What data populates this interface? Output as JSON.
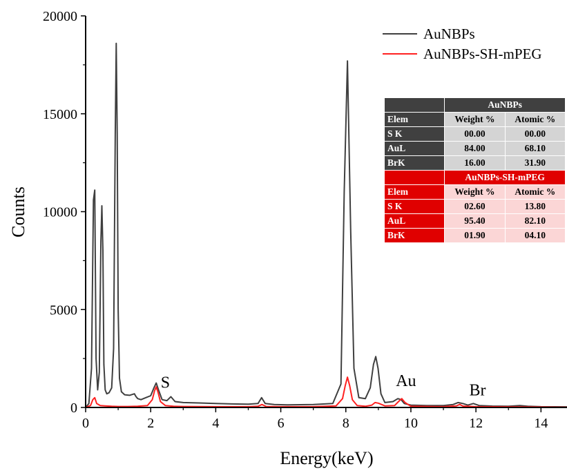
{
  "chart_data": {
    "type": "line",
    "xlabel": "Energy(keV)",
    "ylabel": "Counts",
    "xlim": [
      0,
      14.8
    ],
    "ylim": [
      0,
      20000
    ],
    "x_ticks": [
      0,
      2,
      4,
      6,
      8,
      10,
      12,
      14
    ],
    "y_ticks": [
      0,
      5000,
      10000,
      15000,
      20000
    ],
    "legend_position": "top-right",
    "series": [
      {
        "name": "AuNBPs",
        "color": "#3f3f3f",
        "x": [
          0.0,
          0.1,
          0.18,
          0.24,
          0.28,
          0.32,
          0.37,
          0.42,
          0.47,
          0.5,
          0.53,
          0.56,
          0.6,
          0.65,
          0.72,
          0.8,
          0.86,
          0.91,
          0.94,
          0.97,
          1.0,
          1.04,
          1.1,
          1.2,
          1.35,
          1.5,
          1.55,
          1.6,
          1.7,
          1.85,
          2.0,
          2.1,
          2.17,
          2.24,
          2.35,
          2.5,
          2.62,
          2.75,
          3.0,
          3.5,
          4.0,
          4.5,
          5.0,
          5.3,
          5.41,
          5.52,
          5.8,
          6.2,
          7.0,
          7.6,
          7.85,
          7.95,
          8.05,
          8.15,
          8.25,
          8.4,
          8.6,
          8.75,
          8.85,
          8.92,
          8.99,
          9.08,
          9.2,
          9.45,
          9.6,
          9.7,
          9.8,
          10.0,
          10.5,
          11.0,
          11.3,
          11.45,
          11.6,
          11.75,
          11.92,
          12.1,
          12.5,
          13.0,
          13.35,
          13.6,
          14.0,
          14.8
        ],
        "values": [
          0,
          200,
          2000,
          10600,
          11100,
          2500,
          900,
          1800,
          8500,
          10300,
          8000,
          2200,
          900,
          700,
          750,
          1000,
          3000,
          14000,
          18600,
          14000,
          5000,
          1500,
          800,
          650,
          620,
          700,
          550,
          450,
          400,
          500,
          600,
          1000,
          1250,
          900,
          400,
          350,
          550,
          300,
          250,
          230,
          200,
          180,
          170,
          200,
          500,
          200,
          150,
          130,
          150,
          200,
          1200,
          11000,
          17700,
          9000,
          2000,
          500,
          450,
          1000,
          2200,
          2600,
          2000,
          700,
          250,
          300,
          450,
          400,
          200,
          120,
          100,
          100,
          150,
          250,
          200,
          120,
          200,
          100,
          70,
          60,
          100,
          60,
          40,
          30
        ]
      },
      {
        "name": "AuNBPs-SH-mPEG",
        "color": "#ff2020",
        "x": [
          0.0,
          0.15,
          0.22,
          0.28,
          0.34,
          0.45,
          0.6,
          0.8,
          1.0,
          1.3,
          1.6,
          1.9,
          2.05,
          2.12,
          2.17,
          2.22,
          2.3,
          2.45,
          2.7,
          3.0,
          4.0,
          5.0,
          5.3,
          5.42,
          5.55,
          6.0,
          7.0,
          7.7,
          7.9,
          7.98,
          8.05,
          8.12,
          8.2,
          8.35,
          8.6,
          8.8,
          8.9,
          9.0,
          9.2,
          9.5,
          9.62,
          9.72,
          9.82,
          10.0,
          11.0,
          11.4,
          11.5,
          11.6,
          12.0,
          13.0,
          14.0,
          14.8
        ],
        "values": [
          0,
          100,
          400,
          500,
          200,
          100,
          80,
          60,
          50,
          50,
          60,
          100,
          400,
          850,
          1050,
          800,
          300,
          100,
          60,
          50,
          40,
          40,
          60,
          150,
          50,
          40,
          40,
          80,
          450,
          1100,
          1550,
          1100,
          400,
          100,
          60,
          120,
          250,
          220,
          80,
          100,
          300,
          450,
          250,
          60,
          40,
          80,
          150,
          70,
          40,
          30,
          20,
          10
        ]
      }
    ],
    "annotations": [
      {
        "text": "S",
        "x": 2.45,
        "y": 1000
      },
      {
        "text": "Au",
        "x": 9.85,
        "y": 1100
      },
      {
        "text": "Br",
        "x": 12.05,
        "y": 620
      }
    ],
    "table": {
      "columns": [
        "Elem",
        "Weight %",
        "Atomic %"
      ],
      "groups": [
        {
          "title": "AuNBPs",
          "rows": [
            [
              "S K",
              "00.00",
              "00.00"
            ],
            [
              "AuL",
              "84.00",
              "68.10"
            ],
            [
              "BrK",
              "16.00",
              "31.90"
            ]
          ]
        },
        {
          "title": "AuNBPs-SH-mPEG",
          "rows": [
            [
              "S K",
              "02.60",
              "13.80"
            ],
            [
              "AuL",
              "95.40",
              "82.10"
            ],
            [
              "BrK",
              "01.90",
              "04.10"
            ]
          ]
        }
      ]
    }
  }
}
